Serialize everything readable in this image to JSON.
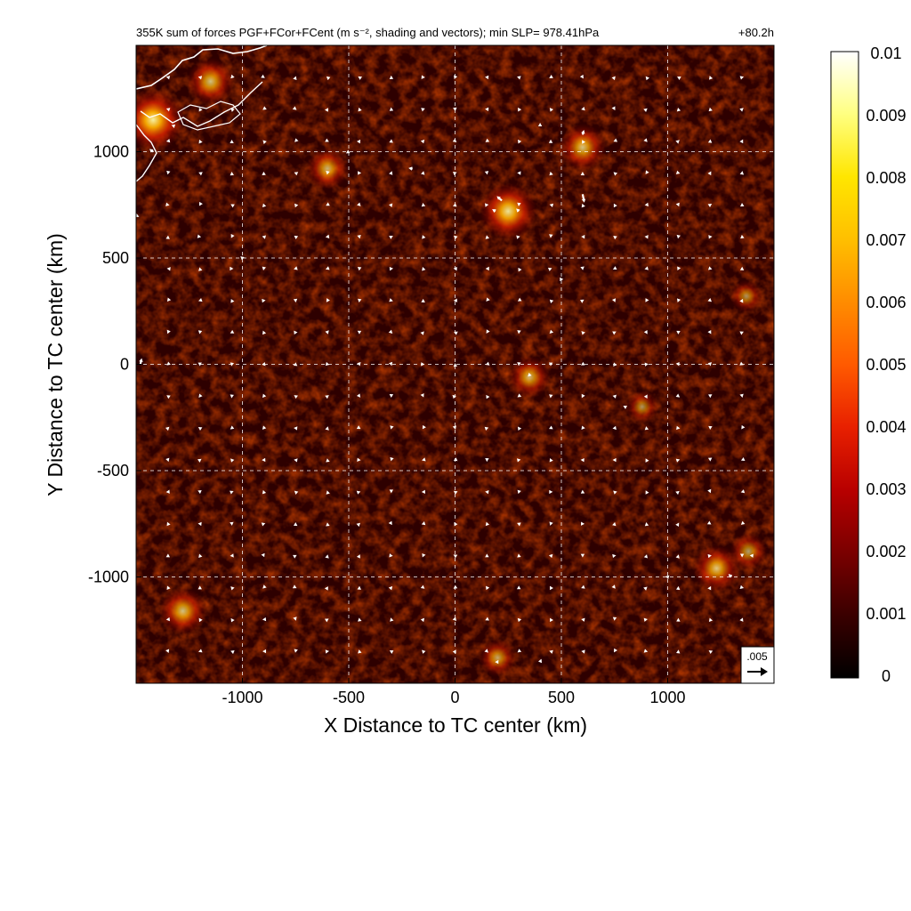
{
  "figure": {
    "title": "355K sum of forces PGF+FCor+FCent (m s⁻², shading and vectors); min SLP= 978.41hPa",
    "lead_time": "+80.2h"
  },
  "chart_data": {
    "type": "heatmap",
    "title": "355K sum of forces PGF+FCor+FCent (m s⁻², shading and vectors); min SLP= 978.41hPa",
    "subtitle": "+80.2h",
    "xlabel": "X Distance to TC center (km)",
    "ylabel": "Y Distance to TC center (km)",
    "xlim": [
      -1500,
      1500
    ],
    "ylim": [
      -1500,
      1500
    ],
    "x_ticks": [
      -1000,
      -500,
      0,
      500,
      1000
    ],
    "y_ticks": [
      -1000,
      -500,
      0,
      500,
      1000
    ],
    "grid": true,
    "colorbar": {
      "min": 0,
      "max": 0.01,
      "ticks": [
        "0",
        "0.001",
        "0.002",
        "0.003",
        "0.004",
        "0.005",
        "0.006",
        "0.007",
        "0.008",
        "0.009",
        "0.01"
      ],
      "colors": [
        "#000000",
        "#3a0000",
        "#7a0000",
        "#b80000",
        "#e82000",
        "#ff5a00",
        "#ff8c00",
        "#ffbf00",
        "#ffe600",
        "#ffff80",
        "#ffffff"
      ]
    },
    "reference_vector": {
      "label": ".005",
      "value": 0.005
    },
    "hotspots": [
      {
        "x": -1420,
        "y": 1150,
        "value": 0.009
      },
      {
        "x": -1150,
        "y": 1330,
        "value": 0.006
      },
      {
        "x": 250,
        "y": 720,
        "value": 0.008
      },
      {
        "x": 600,
        "y": 1020,
        "value": 0.006
      },
      {
        "x": -600,
        "y": 920,
        "value": 0.005
      },
      {
        "x": 350,
        "y": -60,
        "value": 0.005
      },
      {
        "x": 1230,
        "y": -960,
        "value": 0.006
      },
      {
        "x": 1380,
        "y": -880,
        "value": 0.004
      },
      {
        "x": -1280,
        "y": -1160,
        "value": 0.006
      },
      {
        "x": 200,
        "y": -1380,
        "value": 0.004
      },
      {
        "x": 880,
        "y": -200,
        "value": 0.003
      },
      {
        "x": 1370,
        "y": 320,
        "value": 0.003
      }
    ],
    "vectors": [
      {
        "x": 600,
        "y": 800,
        "u": 0.0005,
        "v": -0.0025
      },
      {
        "x": 220,
        "y": 770,
        "u": -0.0015,
        "v": 0.0013
      },
      {
        "x": 300,
        "y": 720,
        "u": -0.0008,
        "v": 0.0008
      },
      {
        "x": 190,
        "y": 720,
        "u": -0.001,
        "v": 0.0006
      },
      {
        "x": 600,
        "y": 1080,
        "u": 0.0004,
        "v": 0.0014
      },
      {
        "x": 400,
        "y": 1120,
        "u": 0,
        "v": 0.001
      },
      {
        "x": -1500,
        "y": 700,
        "u": 0.0009,
        "v": -0.0004
      },
      {
        "x": -1420,
        "y": 1000,
        "u": -0.0011,
        "v": 0.0008
      },
      {
        "x": -1320,
        "y": 1120,
        "u": -0.0009,
        "v": 0.0003
      },
      {
        "x": -1480,
        "y": 0,
        "u": 0.0004,
        "v": 0.0018
      },
      {
        "x": -1000,
        "y": 500,
        "u": -0.0006,
        "v": 0.0005
      },
      {
        "x": -500,
        "y": 1000,
        "u": -0.0008,
        "v": -0.0005
      },
      {
        "x": -200,
        "y": 920,
        "u": -0.0012,
        "v": 0.0002
      },
      {
        "x": 1300,
        "y": -1000,
        "u": -0.0009,
        "v": 0.0009
      },
      {
        "x": 1400,
        "y": -900,
        "u": -0.0009,
        "v": 0.0001
      },
      {
        "x": 400,
        "y": -1400,
        "u": 0.0004,
        "v": 0.0009
      },
      {
        "x": 200,
        "y": -1400,
        "u": -0.0008,
        "v": 0
      },
      {
        "x": 800,
        "y": -200,
        "u": -0.0006,
        "v": 0.0003
      },
      {
        "x": 500,
        "y": 400,
        "u": 0.0006,
        "v": 0
      },
      {
        "x": 350,
        "y": -50,
        "u": -0.0005,
        "v": -0.0005
      },
      {
        "x": 1000,
        "y": -1000,
        "u": 0.0005,
        "v": 0.0005
      }
    ]
  }
}
